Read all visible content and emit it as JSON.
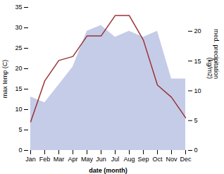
{
  "chart_data": {
    "type": "line",
    "categories": [
      "Jan",
      "Feb",
      "Mar",
      "Apr",
      "May",
      "Jun",
      "Jul",
      "Aug",
      "Sep",
      "Oct",
      "Nov",
      "Dec"
    ],
    "xlabel": "date (month)",
    "ylabel": "max temp (C)",
    "y2label": "med. precipitation\n(kg/m2)",
    "ylim": [
      0,
      35
    ],
    "yticks": [
      0,
      5,
      10,
      15,
      20,
      25,
      30,
      35
    ],
    "y2lim": [
      0,
      24
    ],
    "y2ticks": [
      0,
      5,
      10,
      15,
      20
    ],
    "grid": false,
    "series": [
      {
        "type": "area",
        "axis": "y2",
        "color": "#c5cce8",
        "values": [
          9,
          8,
          11,
          14,
          20,
          21,
          19,
          20,
          19,
          20,
          12,
          12
        ]
      },
      {
        "type": "line",
        "color": "#993333",
        "values": [
          7,
          17,
          22,
          23,
          28,
          28,
          33,
          33,
          27,
          16,
          13,
          8
        ]
      }
    ]
  }
}
